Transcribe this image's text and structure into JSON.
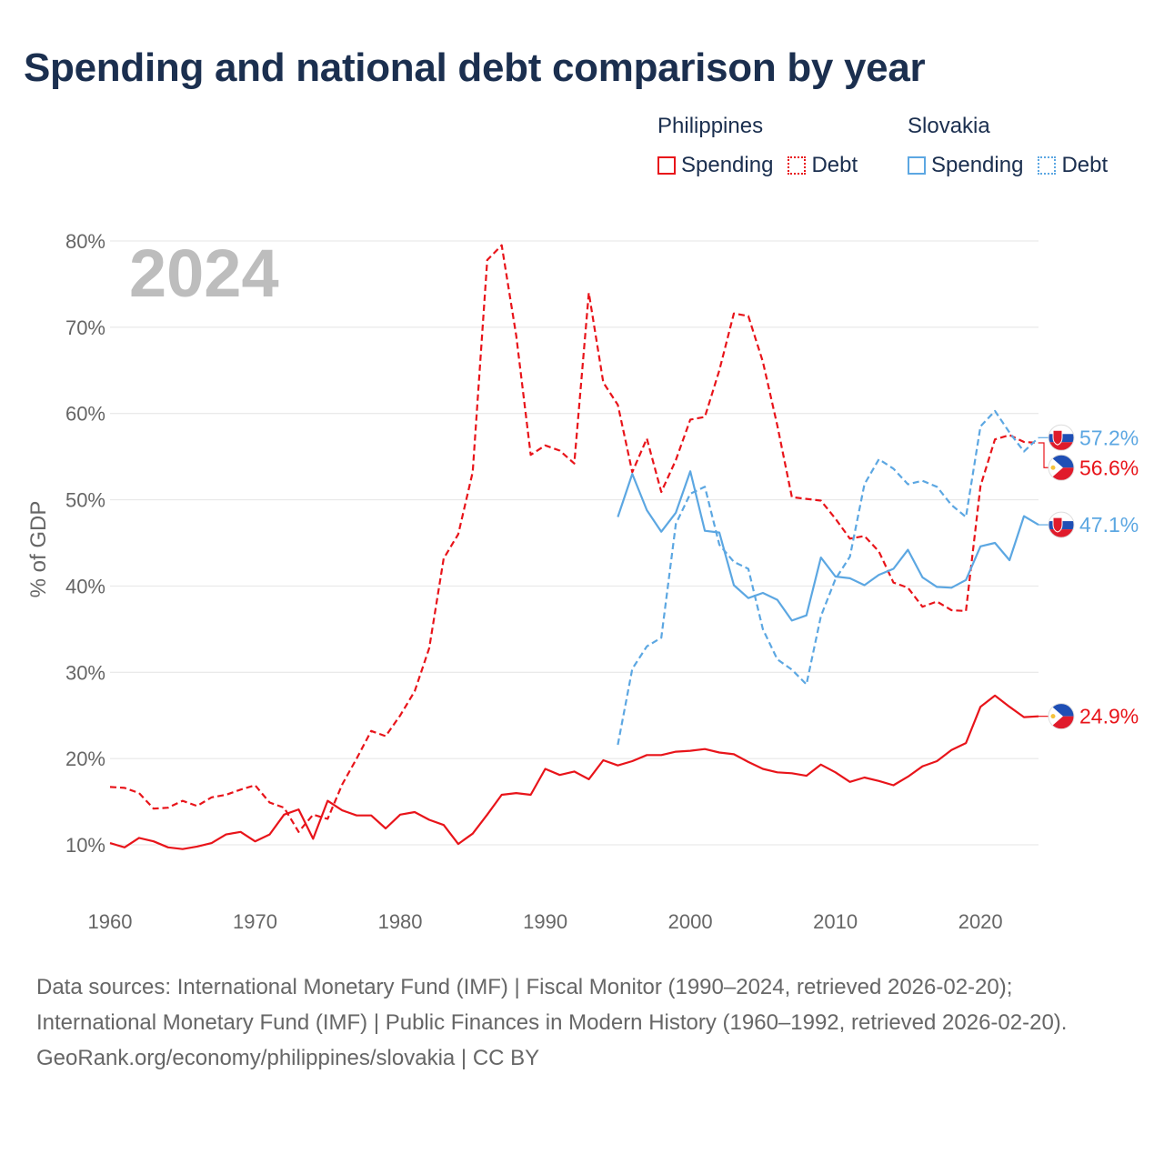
{
  "title": "Spending and national debt comparison by year",
  "year_label": "2024",
  "legend": {
    "philippines": {
      "title": "Philippines",
      "spending": "Spending",
      "debt": "Debt",
      "color": "#e8141a"
    },
    "slovakia": {
      "title": "Slovakia",
      "spending": "Spending",
      "debt": "Debt",
      "color": "#5ca7e2"
    }
  },
  "footer": {
    "sources": "Data sources: International Monetary Fund (IMF) | Fiscal Monitor (1990–2024, retrieved 2026-02-20); International Monetary Fund (IMF) | Public Finances in Modern History (1960–1992, retrieved 2026-02-20).",
    "credit": "GeoRank.org/economy/philippines/slovakia | CC BY"
  },
  "chart_data": {
    "type": "line",
    "title": "Spending and national debt comparison by year",
    "ylabel": "% of GDP",
    "xlabel": "",
    "xlim": [
      1960,
      2024
    ],
    "ylim": [
      5,
      82
    ],
    "x_ticks": [
      1960,
      1970,
      1980,
      1990,
      2000,
      2010,
      2020
    ],
    "y_ticks": [
      10,
      20,
      30,
      40,
      50,
      60,
      70,
      80
    ],
    "y_tick_labels": [
      "10%",
      "20%",
      "30%",
      "40%",
      "50%",
      "60%",
      "70%",
      "80%"
    ],
    "grid": true,
    "series": [
      {
        "name": "Philippines Spending",
        "country": "Philippines",
        "style": "solid",
        "color": "#e8141a",
        "end_label": "24.9%",
        "points": [
          [
            1960,
            10.2
          ],
          [
            1961,
            9.7
          ],
          [
            1962,
            10.8
          ],
          [
            1963,
            10.4
          ],
          [
            1964,
            9.7
          ],
          [
            1965,
            9.5
          ],
          [
            1966,
            9.8
          ],
          [
            1967,
            10.2
          ],
          [
            1968,
            11.2
          ],
          [
            1969,
            11.5
          ],
          [
            1970,
            10.4
          ],
          [
            1971,
            11.2
          ],
          [
            1972,
            13.5
          ],
          [
            1973,
            14.1
          ],
          [
            1974,
            10.7
          ],
          [
            1975,
            15.1
          ],
          [
            1976,
            14.0
          ],
          [
            1977,
            13.4
          ],
          [
            1978,
            13.4
          ],
          [
            1979,
            11.9
          ],
          [
            1980,
            13.5
          ],
          [
            1981,
            13.8
          ],
          [
            1982,
            12.9
          ],
          [
            1983,
            12.3
          ],
          [
            1984,
            10.1
          ],
          [
            1985,
            11.3
          ],
          [
            1986,
            13.5
          ],
          [
            1987,
            15.8
          ],
          [
            1988,
            16.0
          ],
          [
            1989,
            15.8
          ],
          [
            1990,
            18.8
          ],
          [
            1991,
            18.1
          ],
          [
            1992,
            18.5
          ],
          [
            1993,
            17.6
          ],
          [
            1994,
            19.8
          ],
          [
            1995,
            19.2
          ],
          [
            1996,
            19.7
          ],
          [
            1997,
            20.4
          ],
          [
            1998,
            20.4
          ],
          [
            1999,
            20.8
          ],
          [
            2000,
            20.9
          ],
          [
            2001,
            21.1
          ],
          [
            2002,
            20.7
          ],
          [
            2003,
            20.5
          ],
          [
            2004,
            19.6
          ],
          [
            2005,
            18.8
          ],
          [
            2006,
            18.4
          ],
          [
            2007,
            18.3
          ],
          [
            2008,
            18.0
          ],
          [
            2009,
            19.3
          ],
          [
            2010,
            18.4
          ],
          [
            2011,
            17.3
          ],
          [
            2012,
            17.8
          ],
          [
            2013,
            17.4
          ],
          [
            2014,
            16.9
          ],
          [
            2015,
            17.9
          ],
          [
            2016,
            19.1
          ],
          [
            2017,
            19.7
          ],
          [
            2018,
            21.0
          ],
          [
            2019,
            21.8
          ],
          [
            2020,
            26.0
          ],
          [
            2021,
            27.3
          ],
          [
            2022,
            26.0
          ],
          [
            2023,
            24.8
          ],
          [
            2024,
            24.9
          ]
        ]
      },
      {
        "name": "Philippines Debt",
        "country": "Philippines",
        "style": "dashed",
        "color": "#e8141a",
        "end_label": "56.6%",
        "points": [
          [
            1960,
            16.7
          ],
          [
            1961,
            16.6
          ],
          [
            1962,
            16.0
          ],
          [
            1963,
            14.2
          ],
          [
            1964,
            14.3
          ],
          [
            1965,
            15.1
          ],
          [
            1966,
            14.5
          ],
          [
            1967,
            15.5
          ],
          [
            1968,
            15.8
          ],
          [
            1969,
            16.4
          ],
          [
            1970,
            16.9
          ],
          [
            1971,
            14.9
          ],
          [
            1972,
            14.3
          ],
          [
            1973,
            11.5
          ],
          [
            1974,
            13.5
          ],
          [
            1975,
            13.0
          ],
          [
            1976,
            17.0
          ],
          [
            1977,
            20.0
          ],
          [
            1978,
            23.2
          ],
          [
            1979,
            22.6
          ],
          [
            1980,
            25.0
          ],
          [
            1981,
            27.8
          ],
          [
            1982,
            32.8
          ],
          [
            1983,
            43.2
          ],
          [
            1984,
            46.0
          ],
          [
            1985,
            53.2
          ],
          [
            1986,
            77.8
          ],
          [
            1987,
            79.5
          ],
          [
            1988,
            69.0
          ],
          [
            1989,
            55.2
          ],
          [
            1990,
            56.3
          ],
          [
            1991,
            55.7
          ],
          [
            1992,
            54.2
          ],
          [
            1993,
            74.0
          ],
          [
            1994,
            63.6
          ],
          [
            1995,
            61.0
          ],
          [
            1996,
            53.2
          ],
          [
            1997,
            57.1
          ],
          [
            1998,
            50.9
          ],
          [
            1999,
            54.6
          ],
          [
            2000,
            59.3
          ],
          [
            2001,
            59.6
          ],
          [
            2002,
            65.0
          ],
          [
            2003,
            71.6
          ],
          [
            2004,
            71.3
          ],
          [
            2005,
            66.0
          ],
          [
            2006,
            58.6
          ],
          [
            2007,
            50.3
          ],
          [
            2008,
            50.1
          ],
          [
            2009,
            49.9
          ],
          [
            2010,
            47.8
          ],
          [
            2011,
            45.5
          ],
          [
            2012,
            45.8
          ],
          [
            2013,
            44.0
          ],
          [
            2014,
            40.4
          ],
          [
            2015,
            39.8
          ],
          [
            2016,
            37.6
          ],
          [
            2017,
            38.2
          ],
          [
            2018,
            37.2
          ],
          [
            2019,
            37.1
          ],
          [
            2020,
            51.6
          ],
          [
            2021,
            57.0
          ],
          [
            2022,
            57.5
          ],
          [
            2023,
            56.7
          ],
          [
            2024,
            56.6
          ]
        ]
      },
      {
        "name": "Slovakia Spending",
        "country": "Slovakia",
        "style": "solid",
        "color": "#5ca7e2",
        "end_label": "47.1%",
        "points": [
          [
            1995,
            48.0
          ],
          [
            1996,
            53.0
          ],
          [
            1997,
            48.8
          ],
          [
            1998,
            46.3
          ],
          [
            1999,
            48.5
          ],
          [
            2000,
            53.3
          ],
          [
            2001,
            46.4
          ],
          [
            2002,
            46.2
          ],
          [
            2003,
            40.1
          ],
          [
            2004,
            38.6
          ],
          [
            2005,
            39.2
          ],
          [
            2006,
            38.4
          ],
          [
            2007,
            36.0
          ],
          [
            2008,
            36.6
          ],
          [
            2009,
            43.3
          ],
          [
            2010,
            41.1
          ],
          [
            2011,
            40.9
          ],
          [
            2012,
            40.1
          ],
          [
            2013,
            41.3
          ],
          [
            2014,
            42.0
          ],
          [
            2015,
            44.2
          ],
          [
            2016,
            41.0
          ],
          [
            2017,
            39.9
          ],
          [
            2018,
            39.8
          ],
          [
            2019,
            40.7
          ],
          [
            2020,
            44.6
          ],
          [
            2021,
            45.0
          ],
          [
            2022,
            43.0
          ],
          [
            2023,
            48.1
          ],
          [
            2024,
            47.1
          ]
        ]
      },
      {
        "name": "Slovakia Debt",
        "country": "Slovakia",
        "style": "dashed",
        "color": "#5ca7e2",
        "end_label": "57.2%",
        "points": [
          [
            1995,
            21.6
          ],
          [
            1996,
            30.4
          ],
          [
            1997,
            33.0
          ],
          [
            1998,
            34.0
          ],
          [
            1999,
            47.2
          ],
          [
            2000,
            50.7
          ],
          [
            2001,
            51.5
          ],
          [
            2002,
            44.8
          ],
          [
            2003,
            42.8
          ],
          [
            2004,
            42.0
          ],
          [
            2005,
            35.0
          ],
          [
            2006,
            31.5
          ],
          [
            2007,
            30.3
          ],
          [
            2008,
            28.6
          ],
          [
            2009,
            36.5
          ],
          [
            2010,
            40.8
          ],
          [
            2011,
            43.4
          ],
          [
            2012,
            51.8
          ],
          [
            2013,
            54.7
          ],
          [
            2014,
            53.6
          ],
          [
            2015,
            51.8
          ],
          [
            2016,
            52.2
          ],
          [
            2017,
            51.5
          ],
          [
            2018,
            49.4
          ],
          [
            2019,
            48.0
          ],
          [
            2020,
            58.5
          ],
          [
            2021,
            60.3
          ],
          [
            2022,
            57.8
          ],
          [
            2023,
            55.6
          ],
          [
            2024,
            57.2
          ]
        ]
      }
    ]
  }
}
